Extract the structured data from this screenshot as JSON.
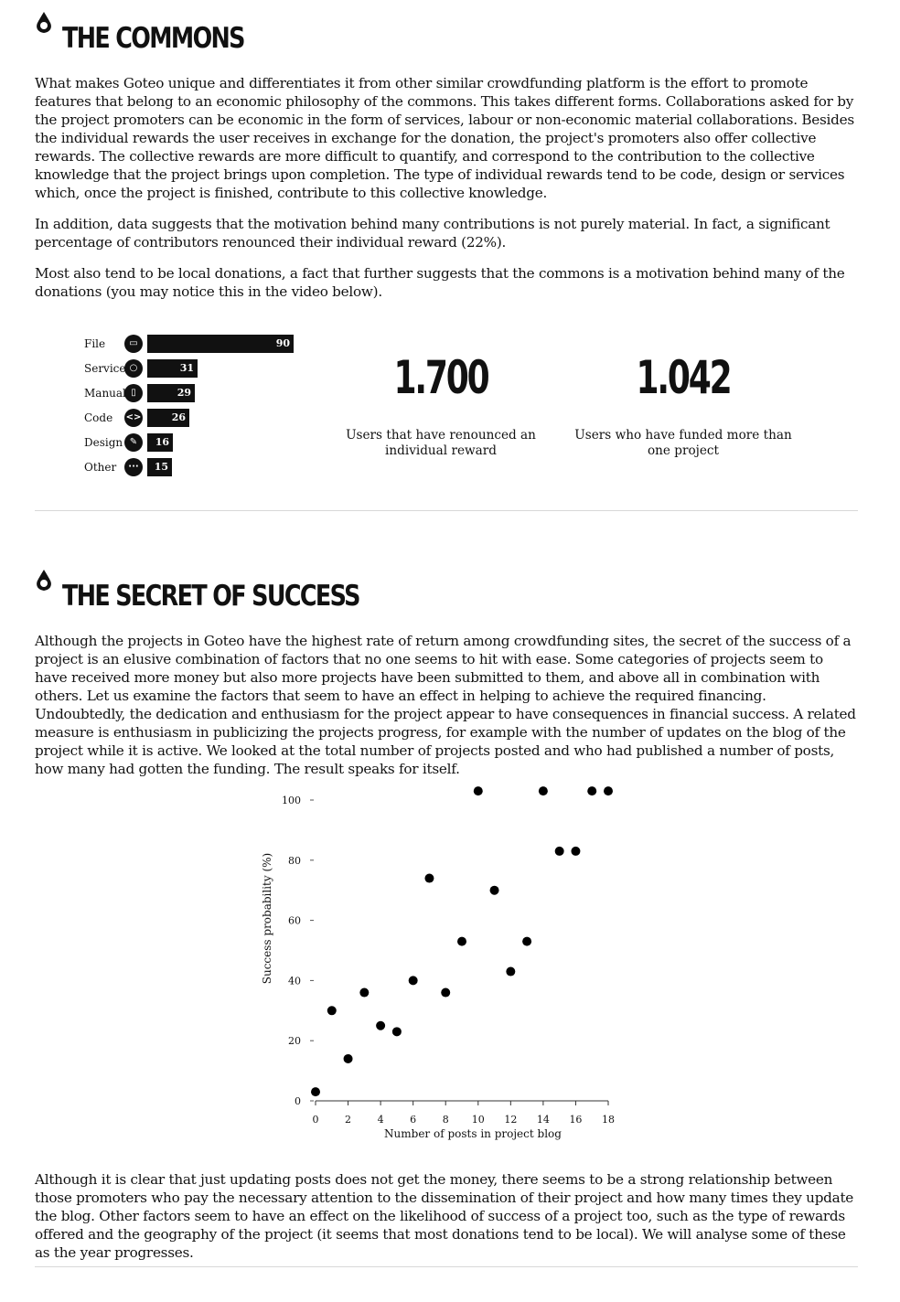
{
  "commons": {
    "title": "THE COMMONS",
    "paragraphs": [
      "What makes Goteo unique and differentiates it from other similar crowdfunding platform is the effort to promote features that belong to an economic philosophy of the commons. This takes different forms. Collaborations asked for by the project promoters can be economic in the form of services, labour or non-economic material collaborations. Besides the individual rewards the user receives in exchange for the donation, the project's promoters also offer collective rewards. The collective rewards are more difficult to quantify, and correspond to the contribution to the collective knowledge that the project brings upon completion. The type of individual rewards tend to be code, design or services which, once the project is finished, contribute to this collective knowledge.",
      "In addition, data suggests that the motivation behind many contributions is not purely material. In fact, a significant percentage of contributors renounced their individual reward (22%).",
      "Most also tend to be local donations, a fact that further suggests that the commons is a motivation behind many of the donations (you may notice this in the video below)."
    ],
    "rewards": [
      {
        "label": "File",
        "value": 90,
        "icon": "folder-icon",
        "glyph": "▭"
      },
      {
        "label": "Service",
        "value": 31,
        "icon": "speech-bubble-icon",
        "glyph": "○"
      },
      {
        "label": "Manual",
        "value": 29,
        "icon": "book-icon",
        "glyph": "▯"
      },
      {
        "label": "Code",
        "value": 26,
        "icon": "code-icon",
        "glyph": "<>"
      },
      {
        "label": "Design",
        "value": 16,
        "icon": "design-icon",
        "glyph": "✎"
      },
      {
        "label": "Other",
        "value": 15,
        "icon": "ellipsis-icon",
        "glyph": "···"
      }
    ],
    "stats": [
      {
        "number": "1.700",
        "caption": "Users that have renounced an individual reward"
      },
      {
        "number": "1.042",
        "caption": "Users who have funded more than one project"
      }
    ]
  },
  "success": {
    "title": "THE SECRET OF SUCCESS",
    "paragraph_before": "Although the projects in Goteo have the highest rate of return among crowdfunding sites, the secret of the success of a project is an elusive combination of factors that no one seems to hit with ease. Some categories of projects seem to have received more money but also more projects have been submitted to them, and above all in combination with others. Let us examine the factors that seem to have an effect in helping to achieve the required financing. Undoubtedly, the dedication and enthusiasm for the project appear to have consequences in financial success. A related measure is enthusiasm in publicizing the projects progress, for example with the number of updates on the blog of the project while it is active. We looked at the total number of projects posted and who had published a number of posts, how many had gotten the funding. The result speaks for itself.",
    "paragraph_after": "Although it is clear that just updating posts does not get the money, there seems to be a strong relationship between those promoters who pay the necessary attention to the dissemination of their project and how many times they update the blog. Other factors seem to have an effect on the likelihood of success of a project too, such as the type of rewards offered and the geography of the project (it seems that most donations tend to be local). We will analyse some of these as the year progresses."
  },
  "chart_data": [
    {
      "type": "bar",
      "categories": [
        "File",
        "Service",
        "Manual",
        "Code",
        "Design",
        "Other"
      ],
      "values": [
        90,
        31,
        29,
        26,
        16,
        15
      ],
      "orientation": "horizontal",
      "title": "",
      "xlabel": "",
      "ylabel": ""
    },
    {
      "type": "scatter",
      "xlabel": "Number of posts in project blog",
      "ylabel": "Success probability (%)",
      "xlim": [
        0,
        18
      ],
      "ylim": [
        0,
        100
      ],
      "xticks": [
        0,
        2,
        4,
        6,
        8,
        10,
        12,
        14,
        16,
        18
      ],
      "yticks": [
        0,
        20,
        40,
        60,
        80,
        100
      ],
      "grid": false,
      "points": [
        {
          "x": 0,
          "y": 3
        },
        {
          "x": 1,
          "y": 30
        },
        {
          "x": 2,
          "y": 14
        },
        {
          "x": 3,
          "y": 36
        },
        {
          "x": 4,
          "y": 25
        },
        {
          "x": 5,
          "y": 23
        },
        {
          "x": 6,
          "y": 40
        },
        {
          "x": 7,
          "y": 74
        },
        {
          "x": 8,
          "y": 36
        },
        {
          "x": 9,
          "y": 53
        },
        {
          "x": 10,
          "y": 103
        },
        {
          "x": 11,
          "y": 70
        },
        {
          "x": 12,
          "y": 43
        },
        {
          "x": 13,
          "y": 53
        },
        {
          "x": 14,
          "y": 103
        },
        {
          "x": 15,
          "y": 83
        },
        {
          "x": 16,
          "y": 83
        },
        {
          "x": 17,
          "y": 103
        },
        {
          "x": 18,
          "y": 103
        }
      ]
    }
  ]
}
